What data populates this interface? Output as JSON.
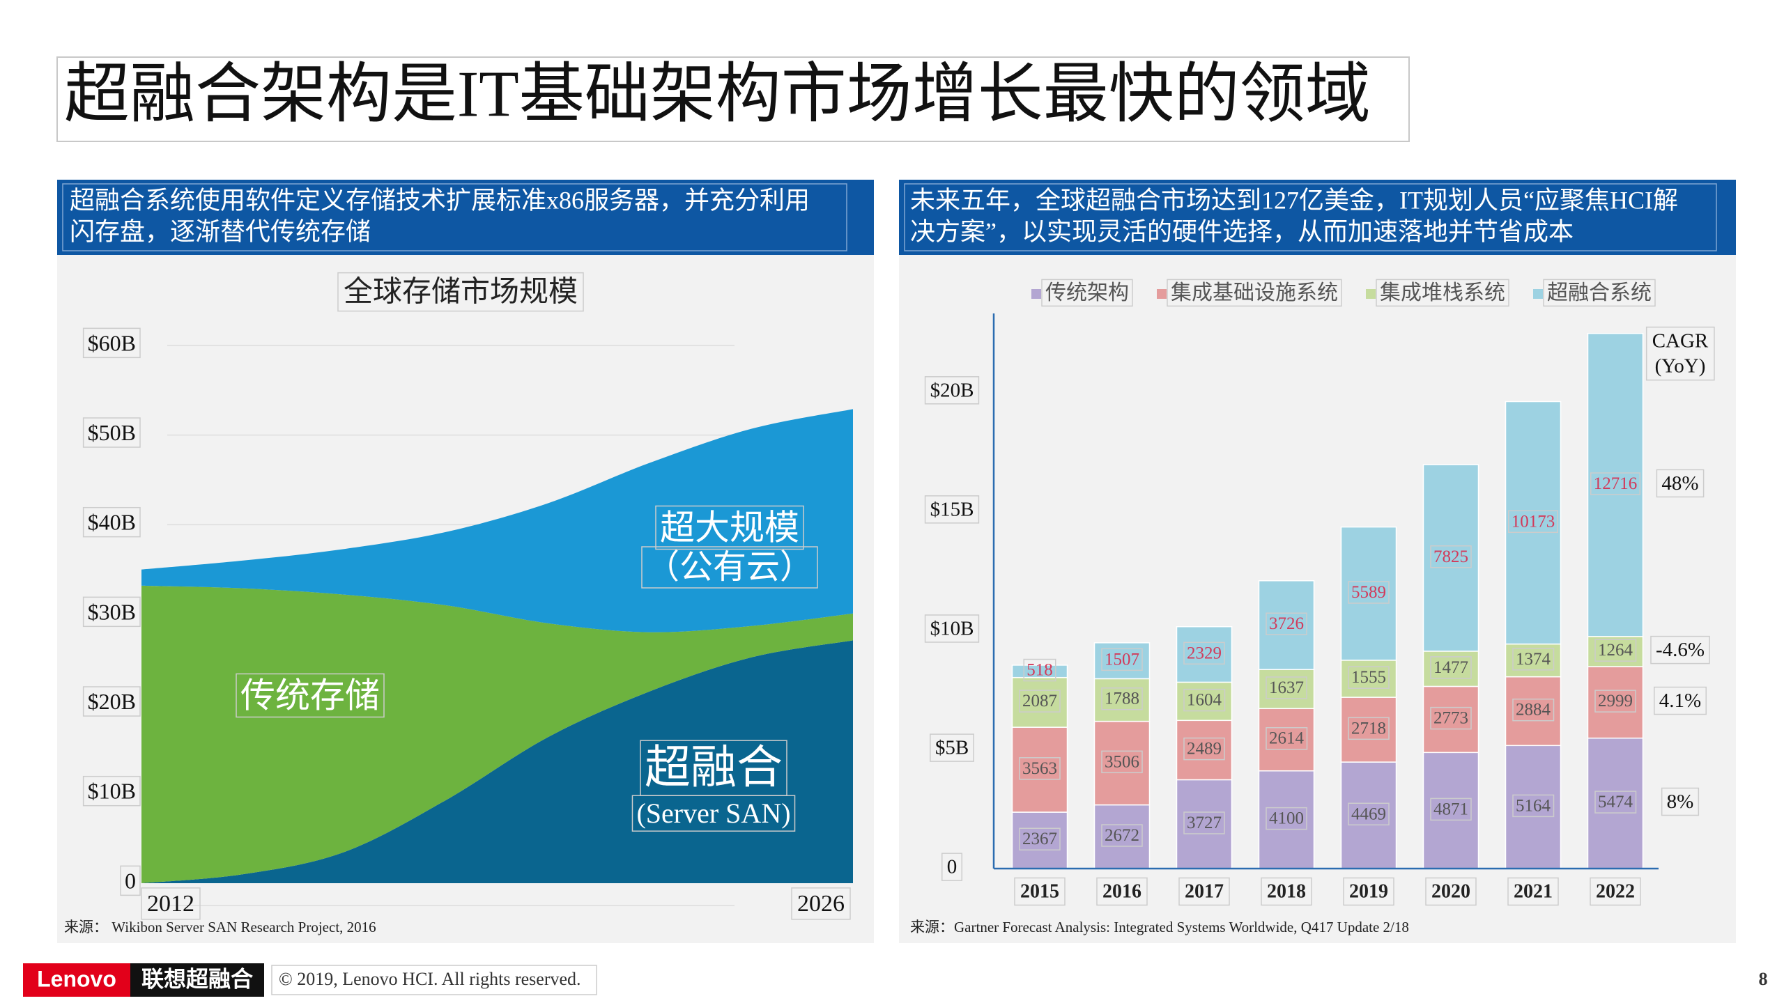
{
  "title": "超融合架构是IT基础架构市场增长最快的领域",
  "panels": [
    {
      "header_lines": [
        "超融合系统使用软件定义存储技术扩展标准x86服务器，并充分利用",
        "闪存盘，逐渐替代传统存储"
      ],
      "source": "来源： Wikibon Server SAN Research Project, 2016"
    },
    {
      "header_lines": [
        "未来五年，全球超融合市场达到127亿美金，IT规划人员“应聚焦HCI解",
        "决方案”，以实现灵活的硬件选择，从而加速落地并节省成本"
      ],
      "source": "来源：Gartner Forecast Analysis: Integrated Systems Worldwide, Q417 Update 2/18"
    }
  ],
  "chart_data": [
    {
      "type": "area",
      "stacked": true,
      "title": "全球存储市场规模",
      "x": [
        2012,
        2014,
        2016,
        2018,
        2020,
        2022,
        2024,
        2026
      ],
      "xlim": [
        2012,
        2026
      ],
      "xticks": [
        2012,
        2026
      ],
      "ylim": [
        0,
        60
      ],
      "yticks": [
        0,
        {
          "value": 10,
          "label": "$10B"
        },
        {
          "value": 20,
          "label": "$20B"
        },
        {
          "value": 30,
          "label": "$30B"
        },
        {
          "value": 40,
          "label": "$40B"
        },
        {
          "value": 50,
          "label": "$50B"
        },
        {
          "value": 60,
          "label": "$60B"
        }
      ],
      "grid": true,
      "series": [
        {
          "name": "超融合",
          "note": "(Server SAN)",
          "color": "#0a658f",
          "values": [
            0,
            1,
            3.5,
            9.3,
            16.3,
            21.4,
            25.2,
            27.1
          ]
        },
        {
          "name": "传统存储",
          "color": "#6db33f",
          "values": [
            33.2,
            31.9,
            28.7,
            21.7,
            12.7,
            6.6,
            3.5,
            3.0
          ]
        },
        {
          "name": "超大规模",
          "note": "（公有云）",
          "color": "#1b98d5",
          "values": [
            1.8,
            3.1,
            5.1,
            8.2,
            13.4,
            18.9,
            22.0,
            22.8
          ]
        }
      ]
    },
    {
      "type": "bar",
      "stacked": true,
      "categories": [
        "2015",
        "2016",
        "2017",
        "2018",
        "2019",
        "2020",
        "2021",
        "2022"
      ],
      "ylim": [
        0,
        23
      ],
      "yticks": [
        0,
        {
          "value": 5,
          "label": "$5B"
        },
        {
          "value": 10,
          "label": "$10B"
        },
        {
          "value": 15,
          "label": "$15B"
        },
        {
          "value": 20,
          "label": "$20B"
        }
      ],
      "grid": false,
      "cagr_title_lines": [
        "CAGR",
        "(YoY)"
      ],
      "series": [
        {
          "name": "传统架构",
          "color": "#b3a6d2",
          "label_color": "#555555",
          "cagr": "8%",
          "values": [
            2.367,
            2.672,
            3.727,
            4.1,
            4.469,
            4.871,
            5.164,
            5.474
          ],
          "value_labels": [
            "2367",
            "2672",
            "3727",
            "4100",
            "4469",
            "4871",
            "5164",
            "5474"
          ]
        },
        {
          "name": "集成基础设施系统",
          "color": "#e49c9c",
          "label_color": "#555555",
          "cagr": "4.1%",
          "values": [
            3.563,
            3.506,
            2.489,
            2.614,
            2.718,
            2.773,
            2.884,
            2.999
          ],
          "value_labels": [
            "3563",
            "3506",
            "2489",
            "2614",
            "2718",
            "2773",
            "2884",
            "2999"
          ]
        },
        {
          "name": "集成堆栈系统",
          "color": "#c6dc9e",
          "label_color": "#555555",
          "cagr": "-4.6%",
          "values": [
            2.087,
            1.788,
            1.604,
            1.637,
            1.555,
            1.477,
            1.374,
            1.264
          ],
          "value_labels": [
            "2087",
            "1788",
            "1604",
            "1637",
            "1555",
            "1477",
            "1374",
            "1264"
          ]
        },
        {
          "name": "超融合系统",
          "color": "#9dd2e2",
          "label_color": "#d23a5a",
          "cagr": "48%",
          "values": [
            0.518,
            1.507,
            2.329,
            3.726,
            5.589,
            7.825,
            10.173,
            12.716
          ],
          "value_labels": [
            "518",
            "1507",
            "2329",
            "3726",
            "5589",
            "7825",
            "10173",
            "12716"
          ]
        }
      ]
    }
  ],
  "footer": {
    "logo_brand": "Lenovo",
    "logo_product": "联想超融合",
    "copyright": "© 2019, Lenovo HCI. All rights reserved.",
    "page_number": "8"
  }
}
